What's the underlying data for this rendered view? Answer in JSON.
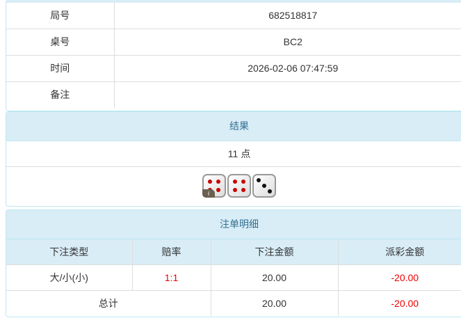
{
  "info": {
    "rows": [
      {
        "label": "局号",
        "value": "682518817"
      },
      {
        "label": "桌号",
        "value": "BC2"
      },
      {
        "label": "时间",
        "value": "2026-02-06 07:47:59"
      },
      {
        "label": "备注",
        "value": ""
      }
    ]
  },
  "result": {
    "title": "结果",
    "points": "11 点",
    "dice": [
      4,
      4,
      3
    ],
    "badge": "i"
  },
  "bets": {
    "title": "注单明细",
    "headers": [
      "下注类型",
      "赔率",
      "下注金额",
      "派彩金额"
    ],
    "rows": [
      {
        "type": "大/小(小)",
        "odds": "1:1",
        "amount": "20.00",
        "payout": "-20.00"
      }
    ],
    "total": {
      "label": "总计",
      "amount": "20.00",
      "payout": "-20.00"
    }
  },
  "colors": {
    "header_bg": "#d9edf7",
    "header_text": "#31708f",
    "negative": "#e00000"
  }
}
